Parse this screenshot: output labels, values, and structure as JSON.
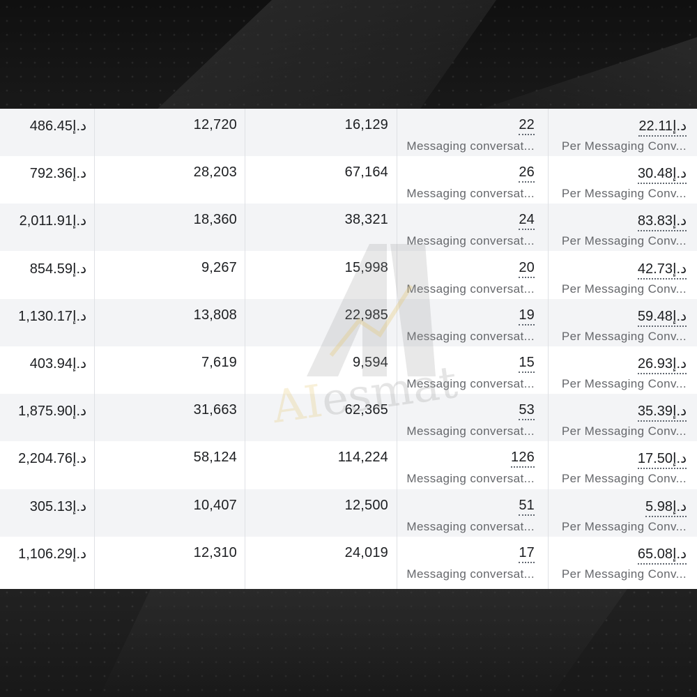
{
  "watermark": {
    "text_prefix": "AI",
    "text_suffix": "esmat"
  },
  "currency": "د.إ",
  "result_label": "Messaging conversat...",
  "cost_label": "Per Messaging Conv...",
  "rows": [
    {
      "amount_spent": "486.45",
      "reach": "12,720",
      "impressions": "16,129",
      "results": "22",
      "cost_per_result": "22.11"
    },
    {
      "amount_spent": "792.36",
      "reach": "28,203",
      "impressions": "67,164",
      "results": "26",
      "cost_per_result": "30.48"
    },
    {
      "amount_spent": "2,011.91",
      "reach": "18,360",
      "impressions": "38,321",
      "results": "24",
      "cost_per_result": "83.83"
    },
    {
      "amount_spent": "854.59",
      "reach": "9,267",
      "impressions": "15,998",
      "results": "20",
      "cost_per_result": "42.73"
    },
    {
      "amount_spent": "1,130.17",
      "reach": "13,808",
      "impressions": "22,985",
      "results": "19",
      "cost_per_result": "59.48"
    },
    {
      "amount_spent": "403.94",
      "reach": "7,619",
      "impressions": "9,594",
      "results": "15",
      "cost_per_result": "26.93"
    },
    {
      "amount_spent": "1,875.90",
      "reach": "31,663",
      "impressions": "62,365",
      "results": "53",
      "cost_per_result": "35.39"
    },
    {
      "amount_spent": "2,204.76",
      "reach": "58,124",
      "impressions": "114,224",
      "results": "126",
      "cost_per_result": "17.50"
    },
    {
      "amount_spent": "305.13",
      "reach": "10,407",
      "impressions": "12,500",
      "results": "51",
      "cost_per_result": "5.98"
    },
    {
      "amount_spent": "1,106.29",
      "reach": "12,310",
      "impressions": "24,019",
      "results": "17",
      "cost_per_result": "65.08"
    }
  ]
}
